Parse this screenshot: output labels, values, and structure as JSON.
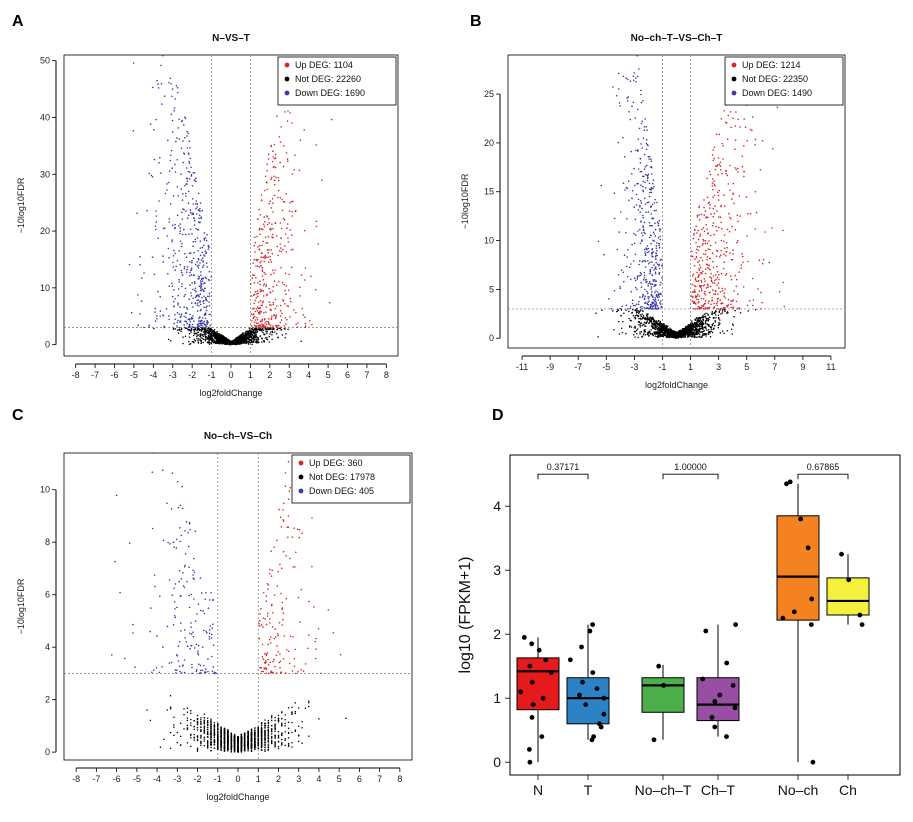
{
  "panel_letters": [
    "A",
    "B",
    "C",
    "D"
  ],
  "chart_data": [
    {
      "panel": "A",
      "type": "scatter",
      "title": "N–VS–T",
      "xlabel": "log2foldChange",
      "ylabel": "−10log10FDR",
      "xlim": [
        -8.6,
        8.6
      ],
      "ylim": [
        -2,
        51
      ],
      "xticks": [
        -8,
        -7,
        -6,
        -5,
        -4,
        -3,
        -2,
        -1,
        0,
        1,
        2,
        3,
        4,
        5,
        6,
        7,
        8
      ],
      "yticks": [
        0,
        10,
        20,
        30,
        40,
        50
      ],
      "fc_threshold": 1,
      "fdr_threshold": 3,
      "fdr_cap": 50,
      "legend_position": "top-right",
      "legend": [
        {
          "label": "Up DEG: 1104",
          "color": "#d62728"
        },
        {
          "label": "Not DEG: 22260",
          "color": "#000000"
        },
        {
          "label": "Down DEG: 1690",
          "color": "#3a3aa8"
        }
      ],
      "series": [
        {
          "name": "Up DEG",
          "count": 1104
        },
        {
          "name": "Not DEG",
          "count": 22260
        },
        {
          "name": "Down DEG",
          "count": 1690
        }
      ]
    },
    {
      "panel": "B",
      "type": "scatter",
      "title": "No–ch–T–VS–Ch–T",
      "xlabel": "log2foldChange",
      "ylabel": "−10log10FDR",
      "xlim": [
        -12,
        12
      ],
      "ylim": [
        -1,
        29
      ],
      "xticks": [
        -11,
        -9,
        -7,
        -5,
        -3,
        -1,
        1,
        3,
        5,
        7,
        9,
        11
      ],
      "yticks": [
        0,
        5,
        10,
        15,
        20,
        25
      ],
      "fc_threshold": 1,
      "fdr_threshold": 3,
      "fdr_cap": 29,
      "legend_position": "top-right",
      "legend": [
        {
          "label": "Up DEG: 1214",
          "color": "#d62728"
        },
        {
          "label": "Not DEG: 22350",
          "color": "#000000"
        },
        {
          "label": "Down DEG: 1490",
          "color": "#3a3aa8"
        }
      ],
      "series": [
        {
          "name": "Up DEG",
          "count": 1214
        },
        {
          "name": "Not DEG",
          "count": 22350
        },
        {
          "name": "Down DEG",
          "count": 1490
        }
      ]
    },
    {
      "panel": "C",
      "type": "scatter",
      "title": "No–ch–VS–Ch",
      "xlabel": "log2foldChange",
      "ylabel": "−10log10FDR",
      "xlim": [
        -8.6,
        8.6
      ],
      "ylim": [
        -0.3,
        11.4
      ],
      "xticks": [
        -8,
        -7,
        -6,
        -5,
        -4,
        -3,
        -2,
        -1,
        0,
        1,
        2,
        3,
        4,
        5,
        6,
        7,
        8
      ],
      "yticks": [
        0,
        2,
        4,
        6,
        8,
        10
      ],
      "fc_threshold": 1,
      "fdr_threshold": 3,
      "fdr_cap": 11.4,
      "legend_position": "top-right",
      "legend": [
        {
          "label": "Up DEG: 360",
          "color": "#d62728"
        },
        {
          "label": "Not DEG: 17978",
          "color": "#000000"
        },
        {
          "label": "Down DEG: 405",
          "color": "#3a3aa8"
        }
      ],
      "series": [
        {
          "name": "Up DEG",
          "count": 360
        },
        {
          "name": "Not DEG",
          "count": 17978
        },
        {
          "name": "Down DEG",
          "count": 405
        }
      ]
    },
    {
      "panel": "D",
      "type": "box",
      "ylabel": "log10 (FPKM+1)",
      "ylim": [
        -0.2,
        4.8
      ],
      "yticks": [
        0,
        1,
        2,
        3,
        4
      ],
      "categories": [
        "N",
        "T",
        "No–ch–T",
        "Ch–T",
        "No–ch",
        "Ch"
      ],
      "groups": [
        {
          "name": "N",
          "color": "#e41a1c",
          "q1": 0.82,
          "median": 1.42,
          "q3": 1.63,
          "whisker_low": 0.0,
          "whisker_high": 1.95,
          "points": [
            0.0,
            0.2,
            0.4,
            0.7,
            0.9,
            1.0,
            1.1,
            1.25,
            1.4,
            1.5,
            1.6,
            1.75,
            1.85,
            1.95
          ]
        },
        {
          "name": "T",
          "color": "#2b83c6",
          "q1": 0.6,
          "median": 1.0,
          "q3": 1.32,
          "whisker_low": 0.35,
          "whisker_high": 2.15,
          "points": [
            0.35,
            0.4,
            0.55,
            0.6,
            0.75,
            0.9,
            1.0,
            1.05,
            1.15,
            1.25,
            1.4,
            1.6,
            1.8,
            2.05,
            2.15
          ]
        },
        {
          "name": "No–ch–T",
          "color": "#4daf4a",
          "q1": 0.78,
          "median": 1.2,
          "q3": 1.32,
          "whisker_low": 0.35,
          "whisker_high": 1.52,
          "points": [
            0.35,
            1.2,
            1.5
          ]
        },
        {
          "name": "Ch–T",
          "color": "#984ea3",
          "q1": 0.65,
          "median": 0.9,
          "q3": 1.32,
          "whisker_low": 0.4,
          "whisker_high": 2.15,
          "points": [
            0.4,
            0.55,
            0.7,
            0.85,
            0.95,
            1.05,
            1.2,
            1.3,
            1.55,
            2.05,
            2.15
          ]
        },
        {
          "name": "No–ch",
          "color": "#f58220",
          "q1": 2.22,
          "median": 2.9,
          "q3": 3.85,
          "whisker_low": 0.0,
          "whisker_high": 4.35,
          "points": [
            0.0,
            2.15,
            2.25,
            2.35,
            2.55,
            3.35,
            3.8,
            4.35,
            4.38
          ]
        },
        {
          "name": "Ch",
          "color": "#f5f03b",
          "q1": 2.3,
          "median": 2.52,
          "q3": 2.88,
          "whisker_low": 2.15,
          "whisker_high": 3.25,
          "points": [
            2.15,
            2.3,
            2.85,
            3.25
          ]
        }
      ],
      "comparisons": [
        {
          "pair": [
            "N",
            "T"
          ],
          "p_label": "0.37171",
          "y": 4.5
        },
        {
          "pair": [
            "No–ch–T",
            "Ch–T"
          ],
          "p_label": "1.00000",
          "y": 4.5
        },
        {
          "pair": [
            "No–ch",
            "Ch"
          ],
          "p_label": "0.67865",
          "y": 4.5
        }
      ]
    }
  ]
}
